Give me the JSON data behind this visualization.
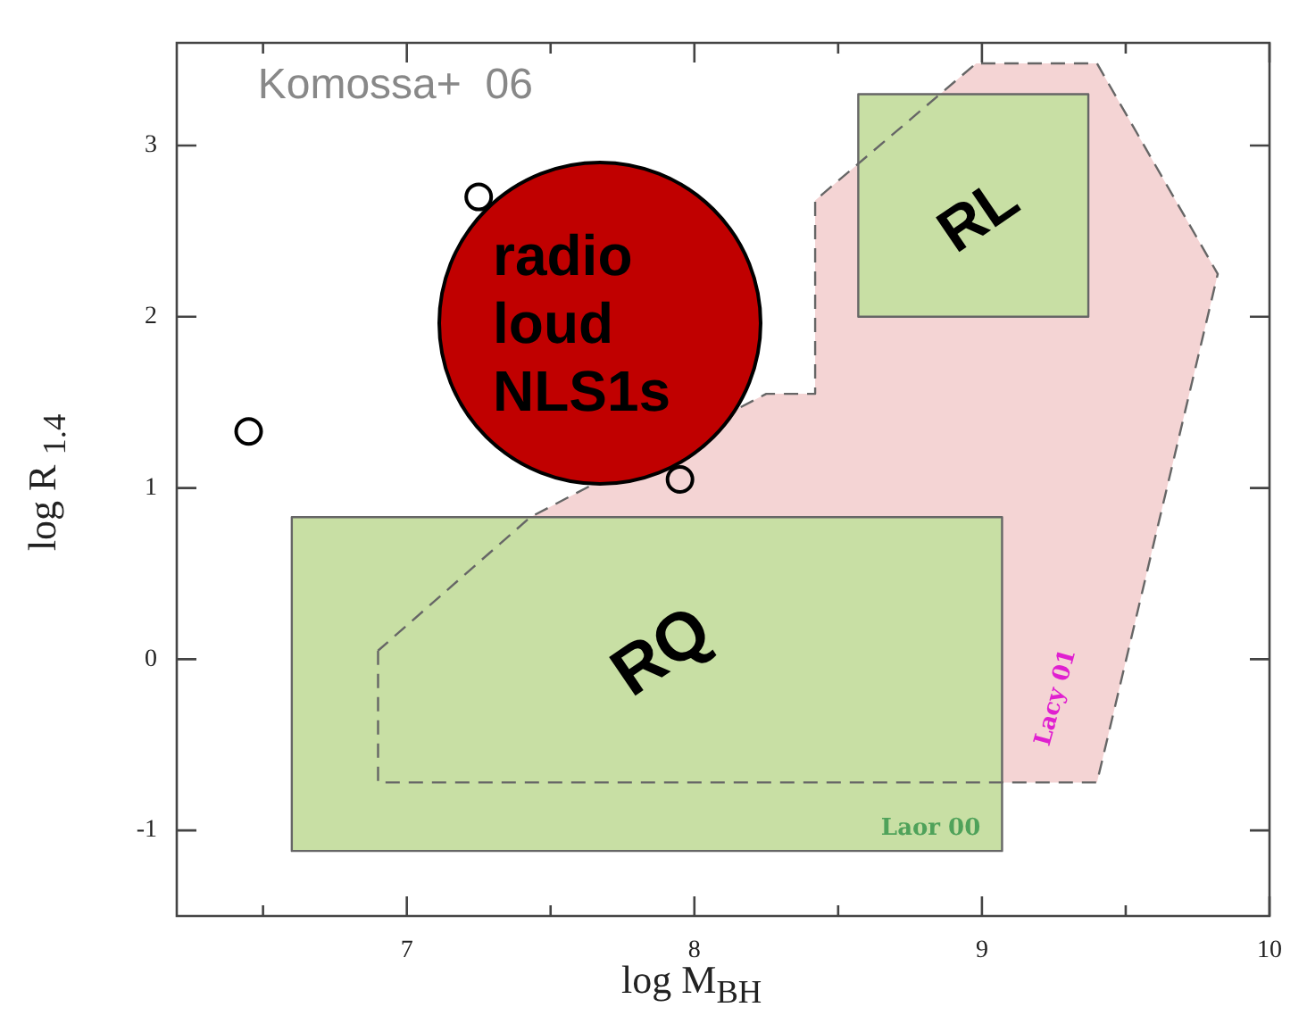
{
  "chart_data": {
    "type": "scatter",
    "xlabel": "log M$_{BH}$",
    "ylabel": "log R $_{1.4}$",
    "xlim": [
      6.2,
      10
    ],
    "ylim": [
      -1.5,
      3.6
    ],
    "xticks": [
      {
        "value": 6.5,
        "label": null
      },
      7,
      {
        "value": 7.5,
        "label": null
      },
      8,
      {
        "value": 8.5,
        "label": null
      },
      9,
      {
        "value": 9.5,
        "label": null
      },
      10
    ],
    "yticks": [
      -1,
      0,
      1,
      2,
      3
    ],
    "grid": false,
    "legend": false,
    "series": [
      {
        "type": "scatter",
        "color": "#000000",
        "marker": "circle",
        "x": [
          6.45,
          7.25,
          7.95
        ],
        "values": [
          1.33,
          2.7,
          1.05
        ]
      },
      {
        "type": "area",
        "color": "#c8dfa4",
        "line_style": "solid",
        "x": [
          6.6,
          9.07,
          9.07,
          6.6,
          6.6
        ],
        "values": [
          -1.12,
          -1.12,
          0.83,
          0.83,
          -1.12
        ]
      },
      {
        "type": "area",
        "color": "#c8dfa4",
        "line_style": "solid",
        "x": [
          8.57,
          9.37,
          9.37,
          8.57,
          8.57
        ],
        "values": [
          2.0,
          2.0,
          3.3,
          3.3,
          2.0
        ]
      },
      {
        "type": "area",
        "color": "#f4d4d4",
        "line_style": "dashed",
        "x": [
          6.9,
          6.9,
          9.4,
          9.82,
          9.4,
          8.98,
          8.42,
          8.42,
          8.25,
          7.43,
          6.9
        ],
        "values": [
          0.05,
          -0.72,
          -0.72,
          2.25,
          3.48,
          3.48,
          2.68,
          1.55,
          1.55,
          0.83,
          0.05
        ]
      }
    ],
    "annotations": [
      "Komossa+  06",
      "RQ",
      "RL",
      "Laor 00",
      "Lacy 01",
      "radio loud NLS1s"
    ]
  }
}
